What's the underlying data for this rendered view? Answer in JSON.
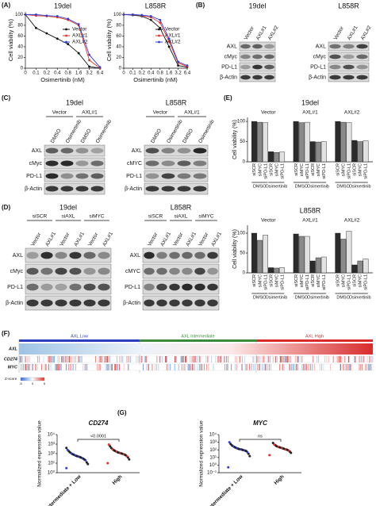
{
  "panels": {
    "A": {
      "label": "(A)",
      "charts": [
        {
          "type": "line",
          "title": "19del",
          "categories": [
            "0",
            "0.1",
            "0.2",
            "0.4",
            "0.8",
            "1.6",
            "3.2",
            "6.4"
          ],
          "xlabel": "Osimertinib (nM)",
          "ylabel": "Cell viability (%)",
          "ylim": [
            0,
            105
          ],
          "yticks": [
            0,
            20,
            40,
            60,
            80,
            100
          ],
          "legend": "center right",
          "series": [
            {
              "name": "Vector",
              "color": "#111111",
              "values": [
                100,
                75,
                65,
                55,
                45,
                28,
                3,
                0
              ]
            },
            {
              "name": "AXL#1",
              "color": "#e0322b",
              "values": [
                100,
                98,
                97,
                95,
                90,
                80,
                15,
                0
              ]
            },
            {
              "name": "AXL#2",
              "color": "#2f3fd6",
              "values": [
                100,
                100,
                98,
                97,
                92,
                82,
                25,
                2
              ]
            }
          ]
        },
        {
          "type": "line",
          "title": "L858R",
          "categories": [
            "0",
            "0.1",
            "0.2",
            "0.4",
            "0.8",
            "1.6",
            "3.2",
            "6.4"
          ],
          "xlabel": "Osimertinib (nM)",
          "ylabel": "Cell viability (%)",
          "ylim": [
            0,
            105
          ],
          "yticks": [
            0,
            20,
            40,
            60,
            80,
            100
          ],
          "legend": "center right",
          "series": [
            {
              "name": "Vector",
              "color": "#111111",
              "values": [
                100,
                99,
                97,
                90,
                75,
                40,
                5,
                2
              ]
            },
            {
              "name": "AXL#1",
              "color": "#e0322b",
              "values": [
                100,
                100,
                98,
                95,
                85,
                50,
                10,
                3
              ]
            },
            {
              "name": "AXL#2",
              "color": "#2f3fd6",
              "values": [
                100,
                100,
                99,
                97,
                90,
                55,
                12,
                5
              ]
            }
          ]
        }
      ]
    },
    "B": {
      "label": "(B)",
      "blots": [
        {
          "title": "19del",
          "lanes": [
            "Vector",
            "AXL#1",
            "AXL#2"
          ],
          "rows": [
            "AXL",
            "cMyc",
            "PD-L1",
            "β-Actin"
          ]
        },
        {
          "title": "L858R",
          "lanes": [
            "Vector",
            "AXL#1",
            "AXL#2"
          ],
          "rows": [
            "AXL",
            "cMyc",
            "PD-L1",
            "β-Actin"
          ]
        }
      ]
    },
    "C": {
      "label": "(C)",
      "blots": [
        {
          "title": "19del",
          "groups": [
            "Vector",
            "AXL#1"
          ],
          "lanes": [
            "DMSO",
            "Osimertinib"
          ],
          "rows": [
            "AXL",
            "cMyc",
            "PD-L1",
            "β-Actin"
          ]
        },
        {
          "title": "L858R",
          "groups": [
            "Vector",
            "AXL#1"
          ],
          "lanes": [
            "DMSO",
            "Osimertinib"
          ],
          "rows": [
            "AXL",
            "cMYC",
            "PD-L1",
            "β-Actin"
          ]
        }
      ]
    },
    "D": {
      "label": "(D)",
      "blots": [
        {
          "title": "19del",
          "groups": [
            "siSCR",
            "siAXL",
            "siMYC"
          ],
          "lanes": [
            "Vector",
            "AXL#1"
          ],
          "rows": [
            "AXL",
            "cMyc",
            "PD-L1",
            "β-Actin"
          ]
        },
        {
          "title": "L858R",
          "groups": [
            "siSCR",
            "siAXL",
            "siMYC"
          ],
          "lanes": [
            "Vector",
            "AXL#1"
          ],
          "rows": [
            "AXL",
            "cMYC",
            "PD-L1",
            "β-Actin"
          ]
        }
      ]
    },
    "E": {
      "label": "(E)",
      "charts": [
        {
          "type": "bar",
          "title": "19del",
          "categories": [
            "Vector",
            "AXL#1",
            "AXL#2"
          ],
          "treatments": [
            "DMSO",
            "Osimertinib"
          ],
          "ylabel": "Cell viability (%)",
          "ylim": [
            0,
            110
          ],
          "yticks": [
            0,
            50,
            100
          ],
          "series": [
            {
              "name": "siSCR",
              "color": "#2b2b2b",
              "values": [
                100,
                100,
                100
              ]
            },
            {
              "name": "siMYC",
              "color": "#8a8a8a",
              "values": [
                98,
                97,
                98
              ]
            },
            {
              "name": "siPD-L1",
              "color": "#e2e2e2",
              "values": [
                97,
                98,
                97
              ]
            },
            {
              "name": "siSCR",
              "color": "#2b2b2b",
              "values": [
                25,
                50,
                53
              ]
            },
            {
              "name": "siMYC",
              "color": "#8a8a8a",
              "values": [
                23,
                49,
                50
              ]
            },
            {
              "name": "siPD-L1",
              "color": "#e2e2e2",
              "values": [
                24,
                50,
                52
              ]
            }
          ]
        },
        {
          "type": "bar",
          "title": "L858R",
          "categories": [
            "Vector",
            "AXL#1",
            "AXL#2"
          ],
          "treatments": [
            "DMSO",
            "Osimertinib"
          ],
          "ylabel": "Cell viability (%)",
          "ylim": [
            0,
            120
          ],
          "yticks": [
            0,
            50,
            100
          ],
          "series": [
            {
              "name": "siSCR",
              "color": "#2b2b2b",
              "values": [
                100,
                98,
                100
              ]
            },
            {
              "name": "siMYC",
              "color": "#8a8a8a",
              "values": [
                82,
                92,
                85
              ]
            },
            {
              "name": "siPD-L1",
              "color": "#e2e2e2",
              "values": [
                95,
                92,
                105
              ]
            },
            {
              "name": "siSCR",
              "color": "#2b2b2b",
              "values": [
                13,
                30,
                20
              ]
            },
            {
              "name": "siMYC",
              "color": "#8a8a8a",
              "values": [
                12,
                38,
                30
              ]
            },
            {
              "name": "siPD-L1",
              "color": "#e2e2e2",
              "values": [
                13,
                40,
                35
              ]
            }
          ]
        }
      ]
    },
    "F": {
      "label": "(F)",
      "groups": [
        "AXL Low",
        "AXL Intermediate",
        "AXL High"
      ],
      "group_colors": [
        "#2a3fbf",
        "#3b8a3b",
        "#d92b2b"
      ],
      "rows": [
        "AXL",
        "CD274",
        "MYC"
      ],
      "legend_title": "Z-score",
      "legend_ticks": [
        -5,
        0,
        5
      ]
    },
    "G": {
      "label": "(G)",
      "charts": [
        {
          "type": "scatter",
          "title": "CD274",
          "ylabel": "Normalized expression value",
          "categories": [
            "Intermediate + Low",
            "High"
          ],
          "log": true,
          "ylim": [
            1,
            10000
          ],
          "yticks": [
            {
              "value": 1,
              "label": "10⁰"
            },
            {
              "value": 10,
              "label": "10¹"
            },
            {
              "value": 100,
              "label": "10²"
            },
            {
              "value": 1000,
              "label": "10³"
            },
            {
              "value": 10000,
              "label": "10⁴"
            }
          ],
          "annotation": "<0.0001",
          "colors": [
            "#2f3fd6",
            "#e0322b"
          ],
          "groups": [
            [
              3,
              8,
              12,
              20,
              25,
              30,
              35,
              40,
              45,
              50,
              55,
              60,
              70,
              80,
              90,
              110,
              140,
              180,
              250,
              400
            ],
            [
              10,
              25,
              40,
              55,
              70,
              80,
              90,
              100,
              110,
              120,
              130,
              150,
              170,
              200,
              240,
              300,
              400,
              600,
              900
            ]
          ]
        },
        {
          "type": "scatter",
          "title": "MYC",
          "ylabel": "Normalized expression value",
          "categories": [
            "Intermediate + Low",
            "High"
          ],
          "log": true,
          "ylim": [
            0.1,
            10000
          ],
          "yticks": [
            {
              "value": 0.1,
              "label": "10⁻¹"
            },
            {
              "value": 1,
              "label": "10⁰"
            },
            {
              "value": 10,
              "label": "10¹"
            },
            {
              "value": 100,
              "label": "10²"
            },
            {
              "value": 1000,
              "label": "10³"
            },
            {
              "value": 10000,
              "label": "10⁴"
            }
          ],
          "annotation": "ns",
          "colors": [
            "#2f3fd6",
            "#e0322b"
          ],
          "groups": [
            [
              0.5,
              15,
              30,
              50,
              70,
              80,
              90,
              100,
              110,
              120,
              130,
              150,
              170,
              200,
              250,
              300,
              400,
              600,
              1000
            ],
            [
              20,
              40,
              60,
              80,
              100,
              110,
              120,
              140,
              160,
              180,
              200,
              230,
              260,
              300,
              400,
              500,
              800
            ]
          ]
        }
      ]
    }
  }
}
